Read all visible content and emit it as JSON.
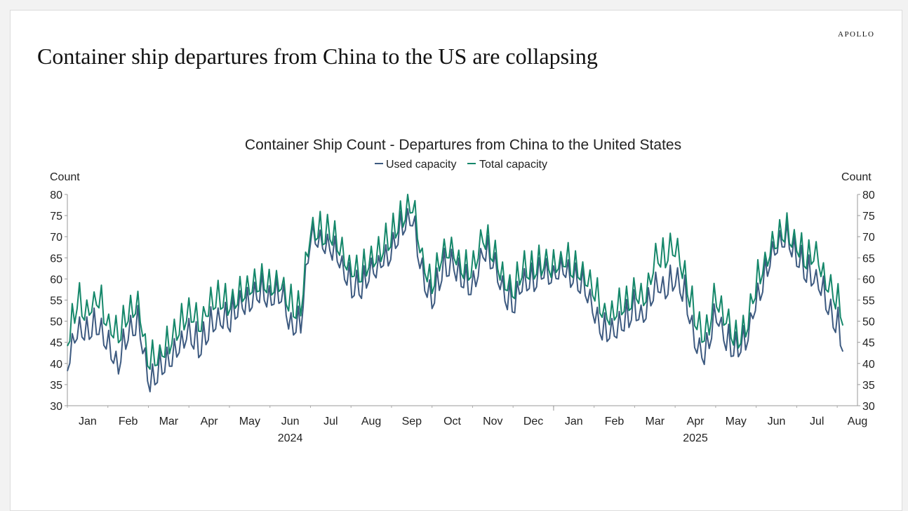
{
  "brand": "APOLLO",
  "headline": "Container ship departures from China to the US are collapsing",
  "colors": {
    "used": "#3d5a80",
    "total": "#15876a"
  },
  "chart_data": {
    "type": "line",
    "title": "Container Ship Count - Departures from China to the United States",
    "ylabel_left": "Count",
    "ylabel_right": "Count",
    "ylim": [
      30,
      80
    ],
    "yticks": [
      30,
      35,
      40,
      45,
      50,
      55,
      60,
      65,
      70,
      75,
      80
    ],
    "xlim": [
      0,
      19.5
    ],
    "month_labels": [
      "Jan",
      "Feb",
      "Mar",
      "Apr",
      "May",
      "Jun",
      "Jul",
      "Aug",
      "Sep",
      "Oct",
      "Nov",
      "Dec",
      "Jan",
      "Feb",
      "Mar",
      "Apr",
      "May",
      "Jun",
      "Jul",
      "Aug"
    ],
    "year_labels": [
      {
        "label": "2024",
        "center": 5.5
      },
      {
        "label": "2025",
        "center": 15.5
      }
    ],
    "year_boundary": 12,
    "series": [
      {
        "name": "Used capacity",
        "x": [
          0,
          0.25,
          0.5,
          0.75,
          1,
          1.25,
          1.5,
          1.75,
          2,
          2.25,
          2.5,
          2.75,
          3,
          3.25,
          3.5,
          3.75,
          4,
          4.25,
          4.5,
          4.75,
          5,
          5.25,
          5.5,
          5.75,
          6,
          6.25,
          6.5,
          6.75,
          7,
          7.25,
          7.5,
          7.75,
          8,
          8.25,
          8.5,
          8.75,
          9,
          9.25,
          9.5,
          9.75,
          10,
          10.25,
          10.5,
          10.75,
          11,
          11.25,
          11.5,
          11.75,
          12,
          12.25,
          12.5,
          12.75,
          13,
          13.25,
          13.5,
          13.75,
          14,
          14.25,
          14.5,
          14.75,
          15,
          15.25,
          15.5,
          15.75,
          16,
          16.25,
          16.5,
          16.75,
          17,
          17.25,
          17.5,
          17.75,
          18,
          18.25,
          18.5,
          18.75,
          19,
          19.15
        ],
        "values": [
          41,
          49,
          47,
          49,
          44,
          40,
          47,
          50,
          36,
          38,
          41,
          44,
          48,
          44,
          48,
          51,
          50,
          54,
          55,
          57,
          56,
          57,
          50,
          49,
          70,
          69,
          68,
          64,
          58,
          58,
          62,
          64,
          67,
          72,
          76,
          62,
          55,
          62,
          64,
          60,
          58,
          67,
          64,
          57,
          54,
          60,
          59,
          62,
          61,
          63,
          60,
          58,
          53,
          47,
          48,
          50,
          53,
          51,
          59,
          58,
          60,
          56,
          45,
          42,
          52,
          46,
          43,
          45,
          55,
          62,
          68,
          70,
          65,
          61,
          60,
          55,
          49,
          45
        ]
      },
      {
        "name": "Total capacity",
        "x": [
          0,
          0.25,
          0.5,
          0.75,
          1,
          1.25,
          1.5,
          1.75,
          2,
          2.25,
          2.5,
          2.75,
          3,
          3.25,
          3.5,
          3.75,
          4,
          4.25,
          4.5,
          4.75,
          5,
          5.25,
          5.5,
          5.75,
          6,
          6.25,
          6.5,
          6.75,
          7,
          7.25,
          7.5,
          7.75,
          8,
          8.25,
          8.5,
          8.75,
          9,
          9.25,
          9.5,
          9.75,
          10,
          10.25,
          10.5,
          10.75,
          11,
          11.25,
          11.5,
          11.75,
          12,
          12.25,
          12.5,
          12.75,
          13,
          13.25,
          13.5,
          13.75,
          14,
          14.25,
          14.5,
          14.75,
          15,
          15.25,
          15.5,
          15.75,
          16,
          16.25,
          16.5,
          16.75,
          17,
          17.25,
          17.5,
          17.75,
          18,
          18.25,
          18.5,
          18.75,
          19,
          19.15
        ],
        "values": [
          46,
          55,
          52,
          56,
          50,
          46,
          52,
          55,
          40,
          42,
          45,
          48,
          53,
          49,
          54,
          56,
          54,
          57,
          59,
          60,
          59,
          60,
          54,
          52,
          73,
          71,
          71,
          67,
          62,
          62,
          65,
          67,
          70,
          74,
          79,
          65,
          59,
          66,
          68,
          63,
          62,
          71,
          67,
          61,
          57,
          63,
          62,
          64,
          63,
          65,
          62,
          61,
          57,
          52,
          52,
          54,
          57,
          56,
          65,
          65,
          68,
          61,
          50,
          46,
          56,
          51,
          46,
          48,
          59,
          65,
          70,
          72,
          68,
          65,
          66,
          59,
          55,
          50
        ]
      }
    ]
  }
}
